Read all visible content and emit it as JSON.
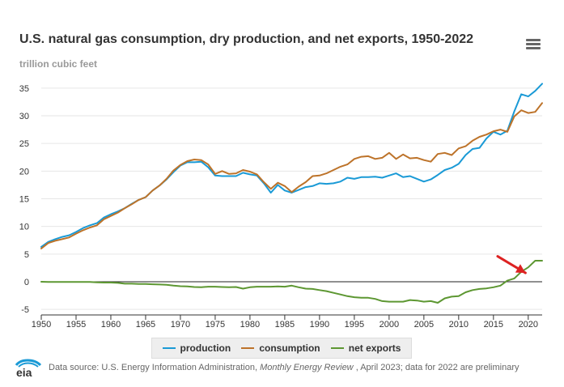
{
  "header": {
    "title": "U.S. natural gas consumption, dry production, and net exports, 1950-2022",
    "subtitle": "trillion cubic feet"
  },
  "footer": {
    "logo_text": "eia",
    "source_prefix": "Data source: U.S. Energy Information Administration,",
    "source_publication": "Monthly Energy Review",
    "source_suffix": ", April 2023; data for 2022 are preliminary"
  },
  "legend": {
    "production": "production",
    "consumption": "consumption",
    "net_exports": "net exports"
  },
  "chart_data": {
    "type": "line",
    "x": [
      1950,
      1951,
      1952,
      1953,
      1954,
      1955,
      1956,
      1957,
      1958,
      1959,
      1960,
      1961,
      1962,
      1963,
      1964,
      1965,
      1966,
      1967,
      1968,
      1969,
      1970,
      1971,
      1972,
      1973,
      1974,
      1975,
      1976,
      1977,
      1978,
      1979,
      1980,
      1981,
      1982,
      1983,
      1984,
      1985,
      1986,
      1987,
      1988,
      1989,
      1990,
      1991,
      1992,
      1993,
      1994,
      1995,
      1996,
      1997,
      1998,
      1999,
      2000,
      2001,
      2002,
      2003,
      2004,
      2005,
      2006,
      2007,
      2008,
      2009,
      2010,
      2011,
      2012,
      2013,
      2014,
      2015,
      2016,
      2017,
      2018,
      2019,
      2020,
      2021,
      2022
    ],
    "series": [
      {
        "name": "production",
        "color": "#1a9ad6",
        "values": [
          6.3,
          7.2,
          7.7,
          8.1,
          8.4,
          9.0,
          9.7,
          10.2,
          10.6,
          11.6,
          12.2,
          12.7,
          13.3,
          14.1,
          14.8,
          15.3,
          16.5,
          17.4,
          18.5,
          19.8,
          21.0,
          21.6,
          21.6,
          21.7,
          20.7,
          19.2,
          19.1,
          19.1,
          19.1,
          19.7,
          19.4,
          19.2,
          17.8,
          16.1,
          17.5,
          16.5,
          16.1,
          16.6,
          17.1,
          17.3,
          17.8,
          17.7,
          17.8,
          18.1,
          18.8,
          18.6,
          18.9,
          18.9,
          19.0,
          18.8,
          19.2,
          19.6,
          18.9,
          19.1,
          18.6,
          18.1,
          18.5,
          19.3,
          20.2,
          20.6,
          21.3,
          22.9,
          24.0,
          24.2,
          25.9,
          27.1,
          26.6,
          27.3,
          30.8,
          33.9,
          33.5,
          34.5,
          35.8
        ]
      },
      {
        "name": "consumption",
        "color": "#bd732a",
        "values": [
          6.0,
          7.0,
          7.4,
          7.7,
          8.0,
          8.7,
          9.3,
          9.8,
          10.2,
          11.3,
          11.9,
          12.5,
          13.3,
          14.0,
          14.8,
          15.3,
          16.5,
          17.4,
          18.6,
          20.1,
          21.1,
          21.8,
          22.1,
          22.0,
          21.2,
          19.5,
          20.0,
          19.5,
          19.6,
          20.2,
          19.9,
          19.4,
          18.0,
          16.8,
          17.9,
          17.3,
          16.2,
          17.2,
          18.0,
          19.1,
          19.2,
          19.6,
          20.2,
          20.8,
          21.2,
          22.2,
          22.6,
          22.7,
          22.2,
          22.4,
          23.3,
          22.2,
          23.0,
          22.3,
          22.4,
          22.0,
          21.7,
          23.1,
          23.3,
          22.9,
          24.1,
          24.5,
          25.5,
          26.2,
          26.6,
          27.2,
          27.5,
          27.1,
          29.9,
          31.0,
          30.5,
          30.7,
          32.3
        ]
      },
      {
        "name": "net exports",
        "color": "#5d9732",
        "values": [
          0.0,
          -0.05,
          -0.05,
          -0.05,
          -0.05,
          -0.05,
          -0.05,
          -0.05,
          -0.1,
          -0.15,
          -0.15,
          -0.2,
          -0.35,
          -0.35,
          -0.4,
          -0.4,
          -0.45,
          -0.5,
          -0.55,
          -0.7,
          -0.8,
          -0.85,
          -0.95,
          -1.0,
          -0.9,
          -0.9,
          -0.95,
          -1.0,
          -0.95,
          -1.25,
          -1.0,
          -0.9,
          -0.9,
          -0.9,
          -0.85,
          -0.9,
          -0.7,
          -1.0,
          -1.25,
          -1.3,
          -1.5,
          -1.7,
          -2.0,
          -2.3,
          -2.6,
          -2.8,
          -2.9,
          -2.9,
          -3.1,
          -3.5,
          -3.6,
          -3.6,
          -3.6,
          -3.3,
          -3.4,
          -3.6,
          -3.5,
          -3.8,
          -3.0,
          -2.7,
          -2.6,
          -1.9,
          -1.5,
          -1.3,
          -1.2,
          -1.0,
          -0.7,
          0.2,
          0.6,
          1.8,
          2.6,
          3.8,
          3.8
        ]
      }
    ],
    "xlabel": "",
    "ylabel": "",
    "xlim": [
      1950,
      2022
    ],
    "ylim": [
      -5,
      35
    ],
    "x_ticks": [
      1950,
      1955,
      1960,
      1965,
      1970,
      1975,
      1980,
      1985,
      1990,
      1995,
      2000,
      2005,
      2010,
      2015,
      2020
    ],
    "y_ticks": [
      -5,
      0,
      5,
      10,
      15,
      20,
      25,
      30,
      35
    ],
    "grid": "horizontal",
    "legend_position": "bottom-center",
    "annotation": {
      "type": "arrow",
      "color": "#dd2222",
      "from": [
        2015.6,
        4.6
      ],
      "to": [
        2019.6,
        1.6
      ]
    }
  }
}
